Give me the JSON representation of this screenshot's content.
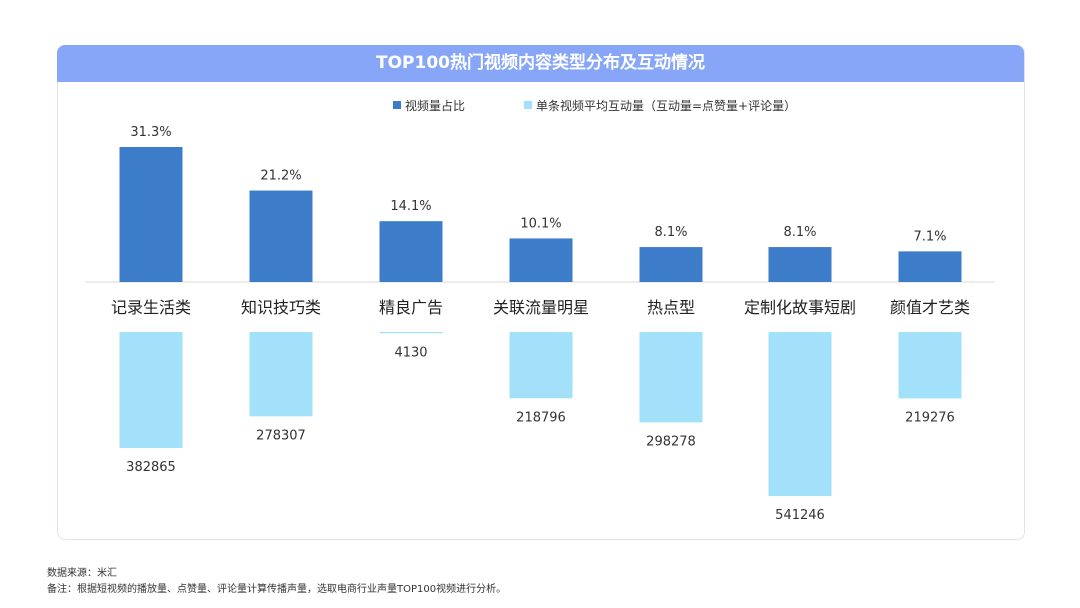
{
  "chart_data": {
    "type": "bar",
    "title": "TOP100热门视频内容类型分布及互动情况",
    "categories": [
      "记录生活类",
      "知识技巧类",
      "精良广告",
      "关联流量明星",
      "热点型",
      "定制化故事短剧",
      "颜值才艺类"
    ],
    "series": [
      {
        "name": "视频量占比",
        "values": [
          31.3,
          21.2,
          14.1,
          10.1,
          8.1,
          8.1,
          7.1
        ],
        "labels": [
          "31.3%",
          "21.2%",
          "14.1%",
          "10.1%",
          "8.1%",
          "8.1%",
          "7.1%"
        ],
        "color": "#3d7cc9"
      },
      {
        "name": "单条视频平均互动量（互动量=点赞量+评论量）",
        "values": [
          382865,
          278307,
          4130,
          218796,
          298278,
          541246,
          219276
        ],
        "labels": [
          "382865",
          "278307",
          "4130",
          "218796",
          "298278",
          "541246",
          "219276"
        ],
        "color": "#a3e1fb"
      }
    ],
    "legend_position": "top-center"
  },
  "footer": {
    "source": "数据来源：米汇",
    "note": "备注：根据短视频的播放量、点赞量、评论量计算传播声量，选取电商行业声量TOP100视频进行分析。"
  }
}
